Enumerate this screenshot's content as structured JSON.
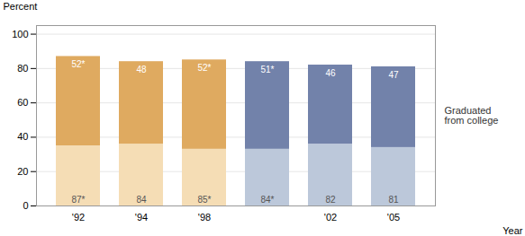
{
  "chart_data": {
    "type": "bar",
    "stacked": true,
    "categories": [
      "'92",
      "'94",
      "'98",
      null,
      "'02",
      "'05"
    ],
    "series": [
      {
        "values": [
          35,
          36,
          33,
          33,
          36,
          34
        ],
        "colors": [
          "#f5ddb5",
          "#f5ddb5",
          "#f5ddb5",
          "#bcc8da",
          "#bcc8da",
          "#bcc8da"
        ]
      },
      {
        "values": [
          52,
          48,
          52,
          51,
          46,
          47
        ],
        "colors": [
          "#dfaa60",
          "#dfaa60",
          "#dfaa60",
          "#7282aa",
          "#7282aa",
          "#7282aa"
        ],
        "value_labels": [
          "52*",
          "48",
          "52*",
          "51*",
          "46",
          "47"
        ]
      }
    ],
    "totals": [
      87,
      84,
      85,
      84,
      82,
      81
    ],
    "total_labels": [
      "87*",
      "84",
      "85*",
      "84*",
      "82",
      "81"
    ],
    "data_labels": true,
    "xlabel": "Year",
    "ylabel": "Percent",
    "ylim": [
      0,
      105
    ],
    "yticks": [
      0,
      20,
      40,
      60,
      80,
      100
    ],
    "grid": true,
    "annotations": [
      "Graduated",
      "from college"
    ]
  }
}
